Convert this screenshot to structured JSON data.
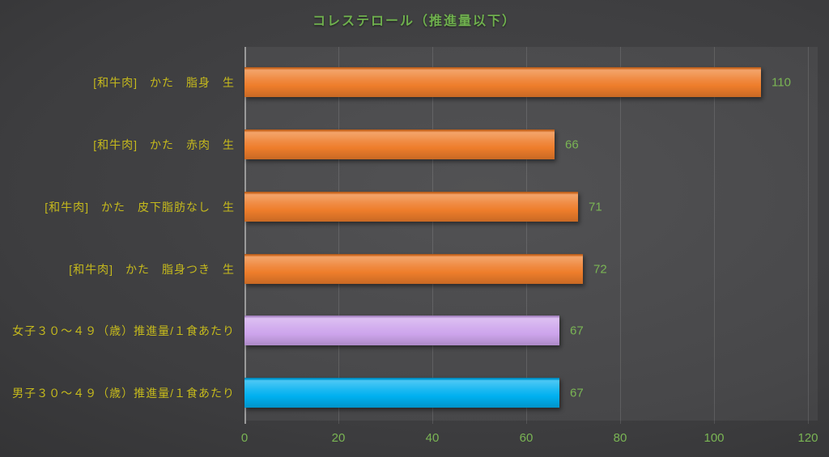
{
  "title": "コレステロール（推進量以下）",
  "colors": {
    "title_green": "#6fb04e",
    "value_green": "#7ab554",
    "category_yellow": "#c6ba1c",
    "orange_bar": "#ee7d2b",
    "purple_bar": "#cda4ec",
    "blue_bar": "#00b0f0",
    "background_dark": "#3d3d3f",
    "axis_line": "#9a9a9a"
  },
  "chart_data": {
    "type": "bar",
    "orientation": "horizontal",
    "title": "コレステロール（推進量以下）",
    "categories": [
      "[和牛肉]　かた　脂身　生",
      "[和牛肉]　かた　赤肉　生",
      "[和牛肉]　かた　皮下脂肪なし　生",
      "[和牛肉]　かた　脂身つき　生",
      "女子３０〜４９（歳）推進量/１食あたり",
      "男子３０〜４９（歳）推進量/１食あたり"
    ],
    "values": [
      110,
      66,
      71,
      72,
      67,
      67
    ],
    "bar_colors": [
      "#ee7d2b",
      "#ee7d2b",
      "#ee7d2b",
      "#ee7d2b",
      "#cda4ec",
      "#00b0f0"
    ],
    "data_labels": [
      "110",
      "66",
      "71",
      "72",
      "67",
      "67"
    ],
    "xlabel": "",
    "ylabel": "",
    "xlim": [
      0,
      120
    ],
    "xticks": [
      0,
      20,
      40,
      60,
      80,
      100,
      120
    ],
    "grid": "vertical-major",
    "legend": "none"
  }
}
